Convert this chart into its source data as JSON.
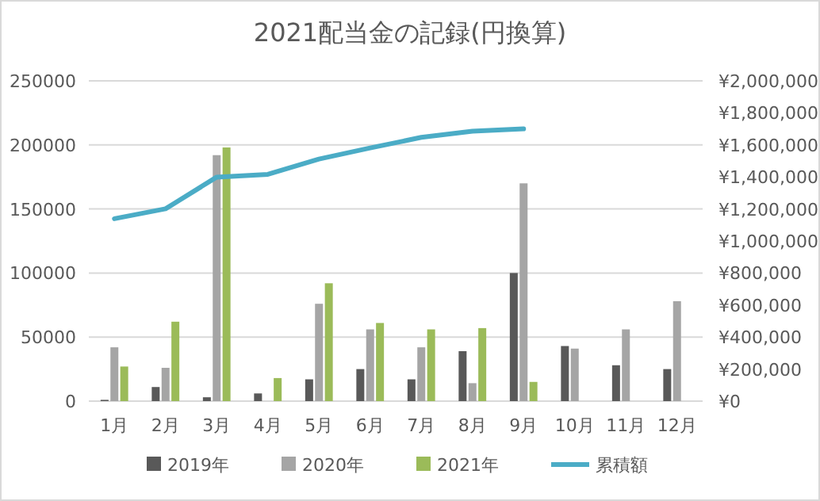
{
  "chart_data": {
    "type": "bar",
    "title": "2021配当金の記録(円換算)",
    "categories": [
      "1月",
      "2月",
      "3月",
      "4月",
      "5月",
      "6月",
      "7月",
      "8月",
      "9月",
      "10月",
      "11月",
      "12月"
    ],
    "series": [
      {
        "name": "2019年",
        "color": "#595959",
        "values": [
          1000,
          11000,
          3000,
          6000,
          17000,
          25000,
          17000,
          39000,
          100000,
          43000,
          28000,
          25000
        ]
      },
      {
        "name": "2020年",
        "color": "#a5a5a5",
        "values": [
          42000,
          26000,
          192000,
          null,
          76000,
          56000,
          42000,
          14000,
          170000,
          41000,
          56000,
          78000
        ]
      },
      {
        "name": "2021年",
        "color": "#9bbb59",
        "values": [
          27000,
          62000,
          198000,
          18000,
          92000,
          61000,
          56000,
          57000,
          15000,
          null,
          null,
          null
        ]
      },
      {
        "name": "累積額",
        "color": "#4bacc6",
        "type": "line",
        "axis": "y2",
        "values": [
          1139000,
          1201000,
          1399000,
          1416000,
          1512000,
          1581000,
          1647000,
          1686000,
          1700000,
          null,
          null,
          null
        ]
      }
    ],
    "ylim": [
      0,
      250000
    ],
    "yticks": [
      0,
      50000,
      100000,
      150000,
      200000,
      250000
    ],
    "y2lim": [
      0,
      2000000
    ],
    "y2ticks": [
      {
        "value": 0,
        "label": "¥0"
      },
      {
        "value": 200000,
        "label": "¥200,000"
      },
      {
        "value": 400000,
        "label": "¥400,000"
      },
      {
        "value": 600000,
        "label": "¥600,000"
      },
      {
        "value": 800000,
        "label": "¥800,000"
      },
      {
        "value": 1000000,
        "label": "¥1,000,000"
      },
      {
        "value": 1200000,
        "label": "¥1,200,000"
      },
      {
        "value": 1400000,
        "label": "¥1,400,000"
      },
      {
        "value": 1600000,
        "label": "¥1,600,000"
      },
      {
        "value": 1800000,
        "label": "¥1,800,000"
      },
      {
        "value": 2000000,
        "label": "¥2,000,000"
      }
    ],
    "grid": "y",
    "legend": "bottom",
    "marker": "none"
  }
}
